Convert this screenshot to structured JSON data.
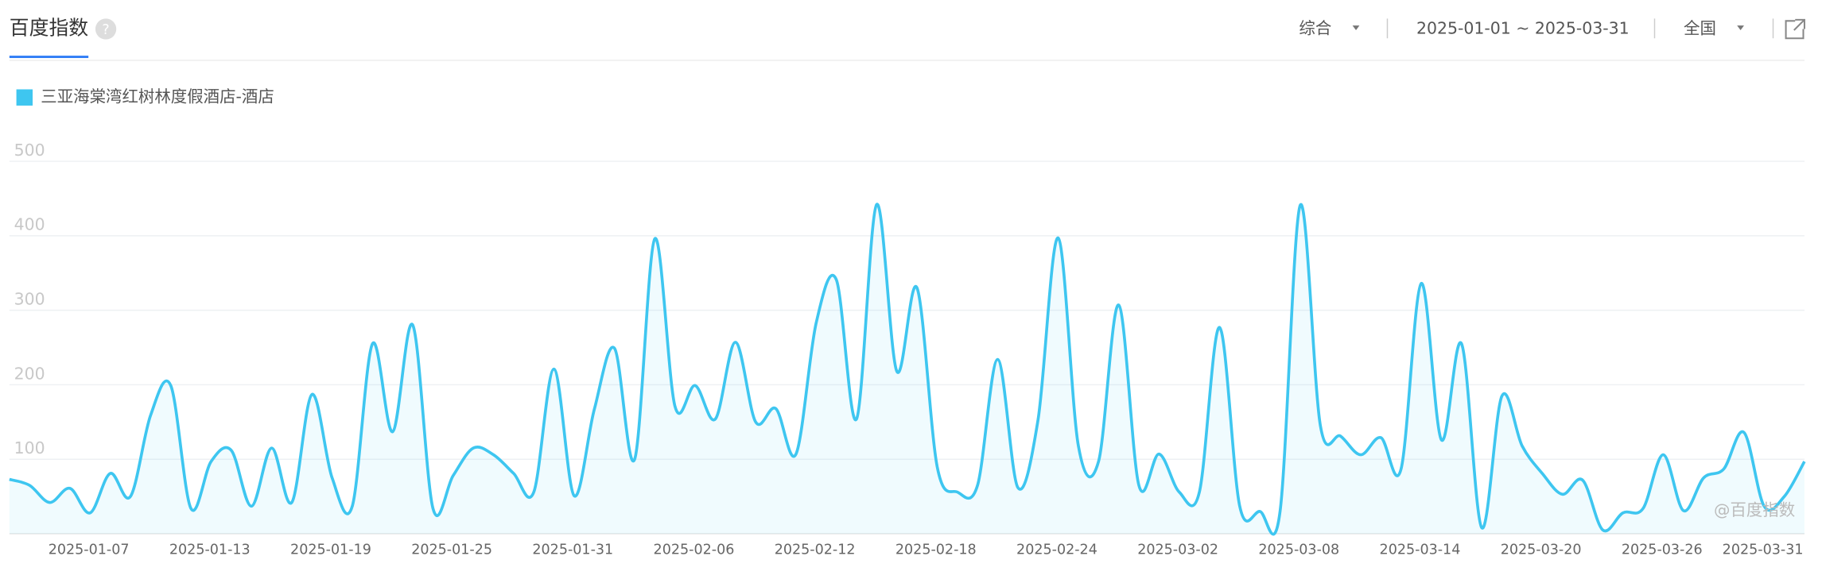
{
  "header": {
    "title": "百度指数",
    "filters": [
      "综合",
      "2025-01-01 ~ 2025-03-31",
      "全国"
    ]
  },
  "watermark": "@百度指数",
  "chart_data": {
    "type": "line",
    "categories": [
      null,
      null,
      null,
      null,
      null,
      null,
      "2025-01-07",
      null,
      null,
      null,
      null,
      null,
      "2025-01-13",
      null,
      null,
      null,
      null,
      null,
      "2025-01-19",
      null,
      null,
      null,
      null,
      null,
      "2025-01-25",
      null,
      null,
      null,
      null,
      null,
      "2025-01-31",
      null,
      null,
      null,
      null,
      null,
      "2025-02-06",
      null,
      null,
      null,
      null,
      null,
      "2025-02-12",
      null,
      null,
      null,
      null,
      null,
      "2025-02-18",
      null,
      null,
      null,
      null,
      null,
      "2025-02-24",
      null,
      null,
      null,
      null,
      null,
      "2025-03-02",
      null,
      null,
      null,
      null,
      null,
      "2025-03-08",
      null,
      null,
      null,
      null,
      null,
      "2025-03-14",
      null,
      null,
      null,
      null,
      null,
      "2025-03-20",
      null,
      null,
      null,
      null,
      null,
      "2025-03-26",
      null,
      null,
      null,
      null,
      "2025-03-31"
    ],
    "series": [
      {
        "name": "三亚海棠湾红树林度假酒店-酒店",
        "color": "#3ec6f0",
        "values": [
          73,
          65,
          42,
          61,
          28,
          81,
          50,
          159,
          199,
          34,
          97,
          112,
          37,
          115,
          42,
          187,
          75,
          37,
          255,
          137,
          280,
          34,
          78,
          115,
          106,
          81,
          56,
          221,
          51,
          167,
          249,
          100,
          396,
          171,
          199,
          154,
          257,
          150,
          168,
          107,
          283,
          341,
          154,
          442,
          218,
          330,
          90,
          56,
          65,
          234,
          62,
          153,
          397,
          118,
          97,
          307,
          65,
          107,
          56,
          56,
          277,
          37,
          30,
          30,
          441,
          145,
          131,
          106,
          129,
          87,
          336,
          126,
          255,
          8,
          185,
          118,
          81,
          53,
          72,
          5,
          28,
          34,
          106,
          31,
          75,
          87,
          136,
          37,
          50,
          97
        ]
      }
    ],
    "ylim": [
      0,
      500
    ],
    "yticks": [
      100,
      200,
      300,
      400,
      500
    ],
    "grid": true
  }
}
